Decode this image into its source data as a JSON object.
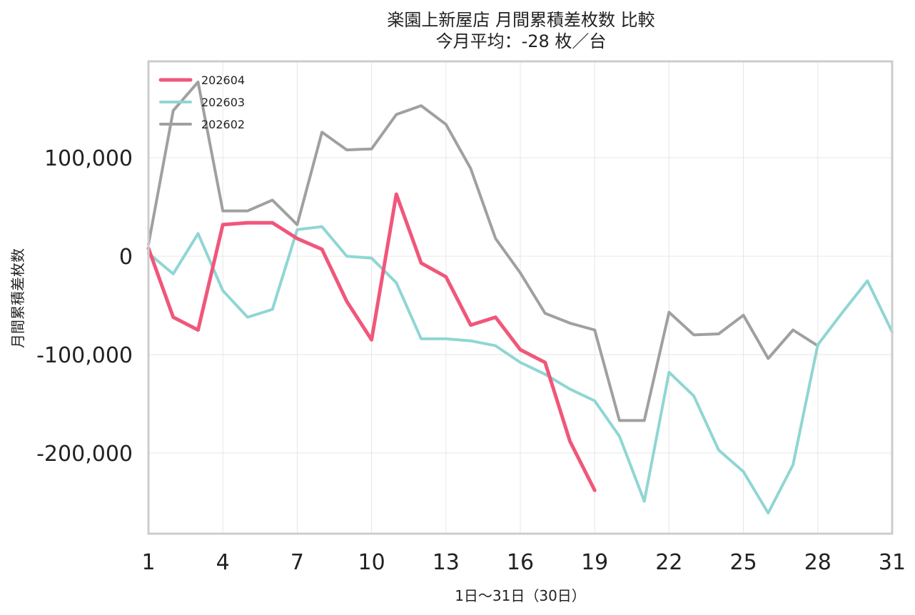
{
  "chart_data": {
    "type": "line",
    "title": "楽園上新屋店 月間累積差枚数 比較",
    "subtitle": "今月平均：-28 枚／台",
    "xlabel": "1日〜31日（30日）",
    "ylabel": "月間累積差枚数",
    "xlim": [
      1,
      31
    ],
    "ylim": [
      -282000,
      198000
    ],
    "x_ticks": [
      {
        "value": 1,
        "label": "1"
      },
      {
        "value": 4,
        "label": "4"
      },
      {
        "value": 7,
        "label": "7"
      },
      {
        "value": 10,
        "label": "10"
      },
      {
        "value": 13,
        "label": "13"
      },
      {
        "value": 16,
        "label": "16"
      },
      {
        "value": 19,
        "label": "19"
      },
      {
        "value": 22,
        "label": "22"
      },
      {
        "value": 25,
        "label": "25"
      },
      {
        "value": 28,
        "label": "28"
      },
      {
        "value": 31,
        "label": "31"
      }
    ],
    "y_ticks": [
      {
        "value": 100000,
        "label": "100,000"
      },
      {
        "value": 0,
        "label": "0"
      },
      {
        "value": -100000,
        "label": "-100,000"
      },
      {
        "value": -200000,
        "label": "-200,000"
      }
    ],
    "grid": true,
    "legend_position": "top-left",
    "series": [
      {
        "name": "202604",
        "color": "#f0577a",
        "width": 5,
        "x": [
          1,
          2,
          3,
          4,
          5,
          6,
          7,
          8,
          9,
          10,
          11,
          12,
          13,
          14,
          15,
          16,
          17,
          18,
          19
        ],
        "y": [
          8000,
          -62000,
          -75000,
          32000,
          34000,
          34000,
          18000,
          7000,
          -46000,
          -85000,
          63000,
          -7000,
          -21000,
          -70000,
          -62000,
          -95000,
          -108000,
          -188000,
          -238000
        ]
      },
      {
        "name": "202603",
        "color": "#8fd6d4",
        "width": 4,
        "x": [
          1,
          2,
          3,
          4,
          5,
          6,
          7,
          8,
          9,
          10,
          11,
          12,
          13,
          14,
          15,
          16,
          17,
          18,
          19,
          20,
          21,
          22,
          23,
          24,
          25,
          26,
          27,
          28,
          29,
          30,
          31
        ],
        "y": [
          3000,
          -18000,
          23000,
          -35000,
          -62000,
          -54000,
          27000,
          30000,
          0,
          -2000,
          -27000,
          -84000,
          -84000,
          -86000,
          -91000,
          -108000,
          -120000,
          -135000,
          -147000,
          -183000,
          -249000,
          -118000,
          -142000,
          -197000,
          -219000,
          -261000,
          -212000,
          -90000,
          -57000,
          -25000,
          -77000
        ]
      },
      {
        "name": "202602",
        "color": "#a0a0a0",
        "width": 4,
        "x": [
          1,
          2,
          3,
          4,
          5,
          6,
          7,
          8,
          9,
          10,
          11,
          12,
          13,
          14,
          15,
          16,
          17,
          18,
          19,
          20,
          21,
          22,
          23,
          24,
          25,
          26,
          27,
          28
        ],
        "y": [
          12000,
          148000,
          177000,
          46000,
          46000,
          57000,
          32000,
          126000,
          108000,
          109000,
          144000,
          153000,
          134000,
          89000,
          18000,
          -17000,
          -58000,
          -68000,
          -75000,
          -167000,
          -167000,
          -57000,
          -80000,
          -79000,
          -60000,
          -104000,
          -75000,
          -91000
        ]
      }
    ]
  }
}
